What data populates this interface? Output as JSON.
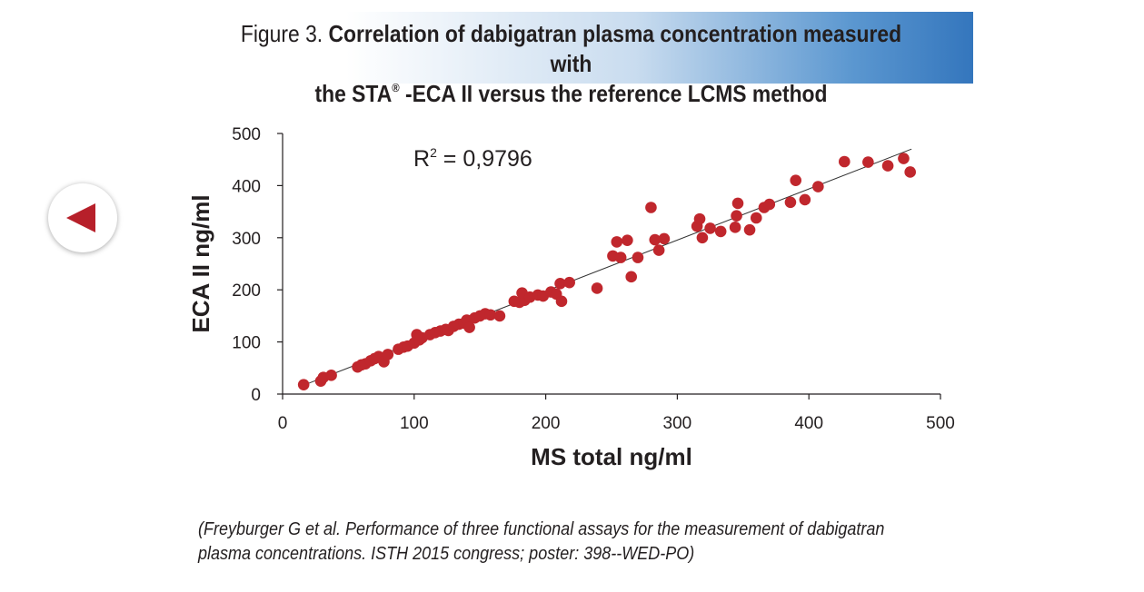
{
  "header": {
    "figure_label": "Figure 3.",
    "title_line1": "Correlation of dabigatran plasma concentration measured with",
    "title_line2_pre": "the STA",
    "title_line2_sup": "®",
    "title_line2_post": " -ECA II versus the reference LCMS method"
  },
  "nav": {
    "back_icon": "triangle-left-icon"
  },
  "colors": {
    "points": "#c0272d",
    "axis": "#231f20",
    "back_arrow": "#b7202a",
    "banner_blue": "#3476bd"
  },
  "reference": {
    "line1": "(Freyburger G et al. Performance of three functional assays for the measurement of dabigatran",
    "line2": "plasma concentrations. ISTH 2015 congress; poster: 398--WED-PO)"
  },
  "chart_data": {
    "type": "scatter",
    "xlabel": "MS total ng/ml",
    "ylabel": "ECA II ng/ml",
    "xlim": [
      0,
      500
    ],
    "ylim": [
      0,
      500
    ],
    "xticks": [
      0,
      100,
      200,
      300,
      400,
      500
    ],
    "yticks": [
      0,
      100,
      200,
      300,
      400,
      500
    ],
    "annotation": {
      "text": "R",
      "sup": "2",
      "rest": " = 0,9796"
    },
    "trendline": {
      "x": [
        15,
        478
      ],
      "y": [
        16,
        470
      ]
    },
    "grid": false,
    "points": [
      [
        16,
        18
      ],
      [
        29,
        25
      ],
      [
        31,
        32
      ],
      [
        37,
        36
      ],
      [
        57,
        52
      ],
      [
        60,
        56
      ],
      [
        63,
        58
      ],
      [
        67,
        64
      ],
      [
        70,
        68
      ],
      [
        73,
        72
      ],
      [
        77,
        62
      ],
      [
        80,
        76
      ],
      [
        88,
        86
      ],
      [
        92,
        90
      ],
      [
        95,
        92
      ],
      [
        100,
        98
      ],
      [
        104,
        104
      ],
      [
        106,
        108
      ],
      [
        102,
        114
      ],
      [
        112,
        114
      ],
      [
        116,
        118
      ],
      [
        120,
        121
      ],
      [
        124,
        124
      ],
      [
        126,
        122
      ],
      [
        130,
        130
      ],
      [
        134,
        134
      ],
      [
        138,
        136
      ],
      [
        140,
        142
      ],
      [
        142,
        128
      ],
      [
        146,
        146
      ],
      [
        150,
        150
      ],
      [
        154,
        154
      ],
      [
        158,
        152
      ],
      [
        165,
        150
      ],
      [
        176,
        178
      ],
      [
        180,
        176
      ],
      [
        184,
        180
      ],
      [
        182,
        194
      ],
      [
        188,
        186
      ],
      [
        194,
        190
      ],
      [
        198,
        188
      ],
      [
        204,
        196
      ],
      [
        208,
        192
      ],
      [
        212,
        178
      ],
      [
        211,
        212
      ],
      [
        218,
        214
      ],
      [
        239,
        203
      ],
      [
        251,
        265
      ],
      [
        254,
        292
      ],
      [
        257,
        262
      ],
      [
        262,
        295
      ],
      [
        265,
        225
      ],
      [
        270,
        262
      ],
      [
        280,
        358
      ],
      [
        283,
        296
      ],
      [
        286,
        276
      ],
      [
        290,
        298
      ],
      [
        315,
        322
      ],
      [
        317,
        336
      ],
      [
        319,
        300
      ],
      [
        325,
        318
      ],
      [
        333,
        312
      ],
      [
        344,
        320
      ],
      [
        345,
        342
      ],
      [
        346,
        366
      ],
      [
        355,
        315
      ],
      [
        360,
        338
      ],
      [
        366,
        358
      ],
      [
        370,
        364
      ],
      [
        386,
        368
      ],
      [
        390,
        410
      ],
      [
        397,
        373
      ],
      [
        407,
        398
      ],
      [
        427,
        446
      ],
      [
        445,
        445
      ],
      [
        460,
        438
      ],
      [
        472,
        452
      ],
      [
        477,
        426
      ]
    ]
  }
}
